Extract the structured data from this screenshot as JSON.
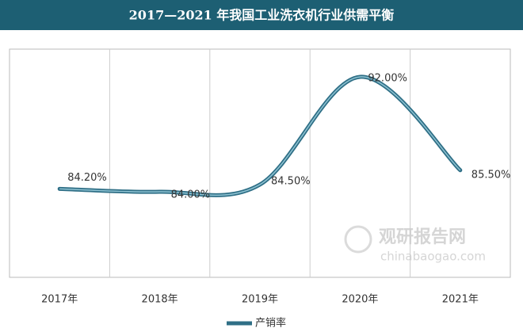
{
  "chart_data": {
    "type": "line",
    "title": "2017—2021 年我国工业洗衣机行业供需平衡",
    "categories": [
      "2017年",
      "2018年",
      "2019年",
      "2020年",
      "2021年"
    ],
    "series": [
      {
        "name": "产销率",
        "color": "#2f6f86",
        "values": [
          84.2,
          84.0,
          84.5,
          92.0,
          85.5
        ],
        "value_labels": [
          "84.20%",
          "84.00%",
          "84.50%",
          "92.00%",
          "85.50%"
        ]
      }
    ],
    "grid": true,
    "legend": "bottom",
    "watermark": {
      "name": "观研报告网",
      "url": "chinabaogao.com"
    }
  }
}
